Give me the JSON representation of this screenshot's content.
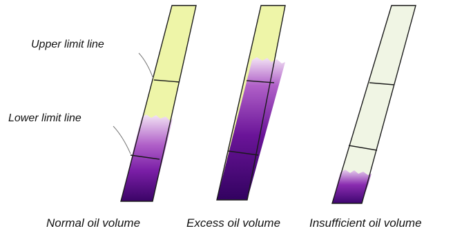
{
  "labels": {
    "upper_limit": "Upper limit line",
    "lower_limit": "Lower limit line"
  },
  "gauges": [
    {
      "caption": "Normal oil volume",
      "oil_state": "normal"
    },
    {
      "caption": "Excess oil volume",
      "oil_state": "excess"
    },
    {
      "caption": "Insufficient oil volume",
      "oil_state": "insufficient"
    }
  ],
  "colors": {
    "oil_dark": "#3a0466",
    "oil_mid": "#7a1ea6",
    "oil_light": "#f0e2f4",
    "glass_yellow": "#eef5a8",
    "glass_pale": "#f0f5e4",
    "outline": "#1a1a1a"
  }
}
